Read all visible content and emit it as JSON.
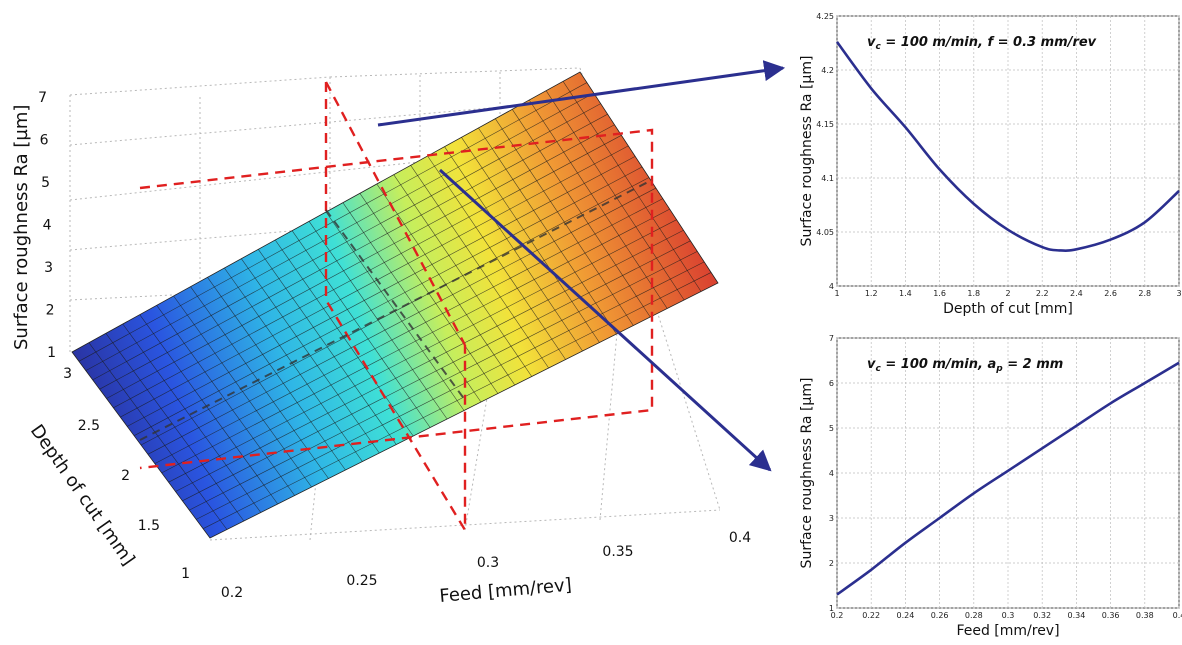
{
  "surface_plot": {
    "z_label": "Surface roughness Ra [µm]",
    "y_label": "Depth of cut [mm]",
    "x_label": "Feed [mm/rev]",
    "z_ticks": [
      "1",
      "2",
      "3",
      "4",
      "5",
      "6",
      "7"
    ],
    "y_ticks": [
      "1",
      "1.5",
      "2",
      "2.5",
      "3"
    ],
    "x_ticks": [
      "0.2",
      "0.25",
      "0.3",
      "0.35",
      "0.4"
    ]
  },
  "chart_data": [
    {
      "type": "surface",
      "xlabel": "Feed [mm/rev]",
      "ylabel": "Depth of cut [mm]",
      "zlabel": "Surface roughness Ra [µm]",
      "xlim": [
        0.2,
        0.4
      ],
      "ylim": [
        1,
        3
      ],
      "zlim": [
        1,
        7
      ],
      "corners": [
        {
          "feed": 0.2,
          "depth": 3,
          "ra": 1.0
        },
        {
          "feed": 0.2,
          "depth": 1,
          "ra": 1.4
        },
        {
          "feed": 0.4,
          "depth": 1,
          "ra": 6.5
        },
        {
          "feed": 0.4,
          "depth": 3,
          "ra": 6.6
        }
      ],
      "colormap": "jet",
      "section_planes": [
        {
          "label": "f = 0.3 mm/rev",
          "axis": "feed",
          "value": 0.3
        },
        {
          "label": "a_p = 2 mm",
          "axis": "depth",
          "value": 2
        }
      ],
      "grid": true
    },
    {
      "type": "line",
      "annotation": {
        "v_sub": "c",
        "text": " = 100 m/min, f = 0.3 mm/rev"
      },
      "xlabel": "Depth of cut [mm]",
      "ylabel": "Surface roughness Ra [µm]",
      "xlim": [
        1,
        3
      ],
      "ylim": [
        4,
        4.25
      ],
      "xticks": [
        "1",
        "1.2",
        "1.4",
        "1.6",
        "1.8",
        "2",
        "2.2",
        "2.4",
        "2.6",
        "2.8",
        "3"
      ],
      "yticks": [
        "4",
        "4.05",
        "4.1",
        "4.15",
        "4.2",
        "4.25"
      ],
      "x": [
        1.0,
        1.2,
        1.4,
        1.6,
        1.8,
        2.0,
        2.2,
        2.3,
        2.4,
        2.6,
        2.8,
        3.0
      ],
      "y": [
        4.226,
        4.183,
        4.147,
        4.108,
        4.076,
        4.052,
        4.036,
        4.033,
        4.034,
        4.043,
        4.059,
        4.088
      ],
      "grid": true,
      "line_color": "#2b2f8f"
    },
    {
      "type": "line",
      "annotation": {
        "v_sub": "c",
        "text": " = 100 m/min, a",
        "a_sub": "p",
        "text2": " = 2 mm"
      },
      "xlabel": "Feed [mm/rev]",
      "ylabel": "Surface roughness Ra [µm]",
      "xlim": [
        0.2,
        0.4
      ],
      "ylim": [
        1,
        7
      ],
      "xticks": [
        "0.2",
        "0.22",
        "0.24",
        "0.26",
        "0.28",
        "0.3",
        "0.32",
        "0.34",
        "0.36",
        "0.38",
        "0.4"
      ],
      "yticks": [
        "1",
        "2",
        "3",
        "4",
        "5",
        "6",
        "7"
      ],
      "x": [
        0.2,
        0.22,
        0.24,
        0.26,
        0.28,
        0.3,
        0.32,
        0.34,
        0.36,
        0.38,
        0.4
      ],
      "y": [
        1.3,
        1.85,
        2.45,
        3.0,
        3.55,
        4.05,
        4.55,
        5.05,
        5.55,
        6.0,
        6.45
      ],
      "grid": true,
      "line_color": "#2b2f8f"
    }
  ]
}
